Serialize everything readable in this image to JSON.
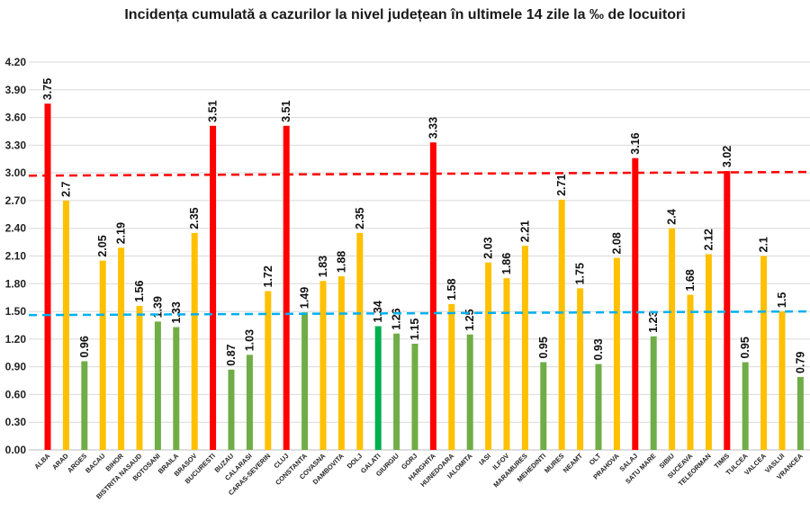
{
  "chart_data": {
    "type": "bar",
    "title": "Incidența cumulată a cazurilor la nivel județean în ultimele 14 zile la ‰ de locuitori",
    "xlabel": "",
    "ylabel": "",
    "ylim": [
      0,
      4.2
    ],
    "yticks": [
      "0.00",
      "0.30",
      "0.60",
      "0.90",
      "1.20",
      "1.50",
      "1.80",
      "2.10",
      "2.40",
      "2.70",
      "3.00",
      "3.30",
      "3.60",
      "3.90",
      "4.20"
    ],
    "grid": true,
    "categories": [
      "ALBA",
      "ARAD",
      "ARGES",
      "BACAU",
      "BIHOR",
      "BISTRITA NASAUD",
      "BOTOSANI",
      "BRAILA",
      "BRASOV",
      "BUCURESTI",
      "BUZAU",
      "CALARASI",
      "CARAS-SEVERIN",
      "CLUJ",
      "CONSTANTA",
      "COVASNA",
      "DAMBOVITA",
      "DOLJ",
      "GALATI",
      "GIURGIU",
      "GORJ",
      "HARGHITA",
      "HUNEDOARA",
      "IALOMITA",
      "IASI",
      "ILFOV",
      "MARAMURES",
      "MEHEDINTI",
      "MURES",
      "NEAMT",
      "OLT",
      "PRAHOVA",
      "SALAJ",
      "SATU MARE",
      "SIBIU",
      "SUCEAVA",
      "TELEORMAN",
      "TIMIS",
      "TULCEA",
      "VALCEA",
      "VASLUI",
      "VRANCEA"
    ],
    "values": [
      3.75,
      2.7,
      0.96,
      2.05,
      2.19,
      1.56,
      1.39,
      1.33,
      2.35,
      3.51,
      0.87,
      1.03,
      1.72,
      3.51,
      1.49,
      1.83,
      1.88,
      2.35,
      1.34,
      1.26,
      1.15,
      3.33,
      1.58,
      1.25,
      2.03,
      1.86,
      2.21,
      0.95,
      2.71,
      1.75,
      0.93,
      2.08,
      3.16,
      1.23,
      2.4,
      1.68,
      2.12,
      3.02,
      0.95,
      2.1,
      1.5,
      0.79
    ],
    "value_labels": [
      "3.75",
      "2.7",
      "0.96",
      "2.05",
      "2.19",
      "1.56",
      "1.39",
      "1.33",
      "2.35",
      "3.51",
      "0.87",
      "1.03",
      "1.72",
      "3.51",
      "1.49",
      "1.83",
      "1.88",
      "2.35",
      "1.34",
      "1.26",
      "1.15",
      "3.33",
      "1.58",
      "1.25",
      "2.03",
      "1.86",
      "2.21",
      "0.95",
      "2.71",
      "1.75",
      "0.93",
      "2.08",
      "3.16",
      "1.23",
      "2.4",
      "1.68",
      "2.12",
      "3.02",
      "0.95",
      "2.1",
      "1.5",
      "0.79"
    ],
    "bar_colors": [
      "#ff0000",
      "#ffc000",
      "#70ad47",
      "#ffc000",
      "#ffc000",
      "#ffc000",
      "#70ad47",
      "#70ad47",
      "#ffc000",
      "#ff0000",
      "#70ad47",
      "#70ad47",
      "#ffc000",
      "#ff0000",
      "#70ad47",
      "#ffc000",
      "#ffc000",
      "#ffc000",
      "#00b050",
      "#70ad47",
      "#70ad47",
      "#ff0000",
      "#ffc000",
      "#70ad47",
      "#ffc000",
      "#ffc000",
      "#ffc000",
      "#70ad47",
      "#ffc000",
      "#ffc000",
      "#70ad47",
      "#ffc000",
      "#ff0000",
      "#70ad47",
      "#ffc000",
      "#ffc000",
      "#ffc000",
      "#ff0000",
      "#70ad47",
      "#ffc000",
      "#ffc000",
      "#70ad47"
    ],
    "reference_lines": [
      {
        "color": "#ff0000",
        "style": "dashed",
        "start_value": 2.97,
        "end_value": 3.01
      },
      {
        "color": "#00b0f0",
        "style": "dashed",
        "start_value": 1.46,
        "end_value": 1.5
      }
    ]
  }
}
